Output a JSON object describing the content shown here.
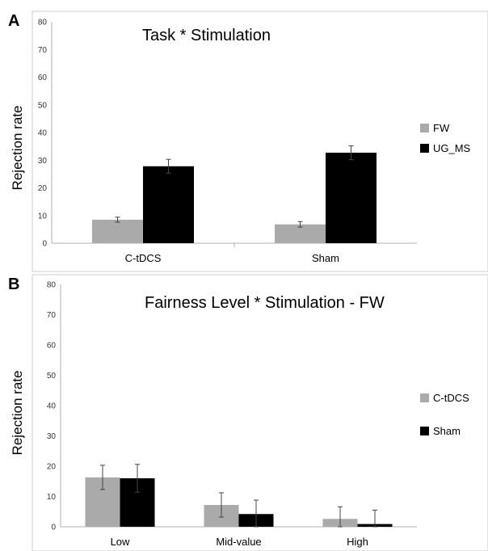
{
  "chart_data": [
    {
      "type": "bar",
      "panel": "A",
      "title": "Task * Stimulation",
      "ylabel": "Rejection rate",
      "xlabel": "",
      "ylim": [
        0,
        80
      ],
      "yticks": [
        0,
        10,
        20,
        30,
        40,
        50,
        60,
        70,
        80
      ],
      "categories": [
        "C-tDCS",
        "Sham"
      ],
      "series": [
        {
          "name": "FW",
          "color": "#aaaaaa",
          "values": [
            8.5,
            6.8
          ],
          "errors": [
            0.9,
            1.0
          ]
        },
        {
          "name": "UG_MS",
          "color": "#000000",
          "values": [
            27.8,
            32.7
          ],
          "errors": [
            2.5,
            2.5
          ]
        }
      ],
      "legend": "right",
      "grid": false
    },
    {
      "type": "bar",
      "panel": "B",
      "title": "Fairness Level * Stimulation - FW",
      "ylabel": "Rejection rate",
      "xlabel": "",
      "ylim": [
        0,
        80
      ],
      "yticks": [
        0,
        10,
        20,
        30,
        40,
        50,
        60,
        70,
        80
      ],
      "categories": [
        "Low",
        "Mid-value",
        "High"
      ],
      "series": [
        {
          "name": "C-tDCS",
          "color": "#aaaaaa",
          "values": [
            16.3,
            7.2,
            2.6
          ],
          "errors": [
            4.0,
            4.0,
            4.0
          ]
        },
        {
          "name": "Sham",
          "color": "#000000",
          "values": [
            16.0,
            4.2,
            0.9
          ],
          "errors": [
            4.6,
            4.6,
            4.6
          ]
        }
      ],
      "legend": "right",
      "grid": false
    }
  ]
}
